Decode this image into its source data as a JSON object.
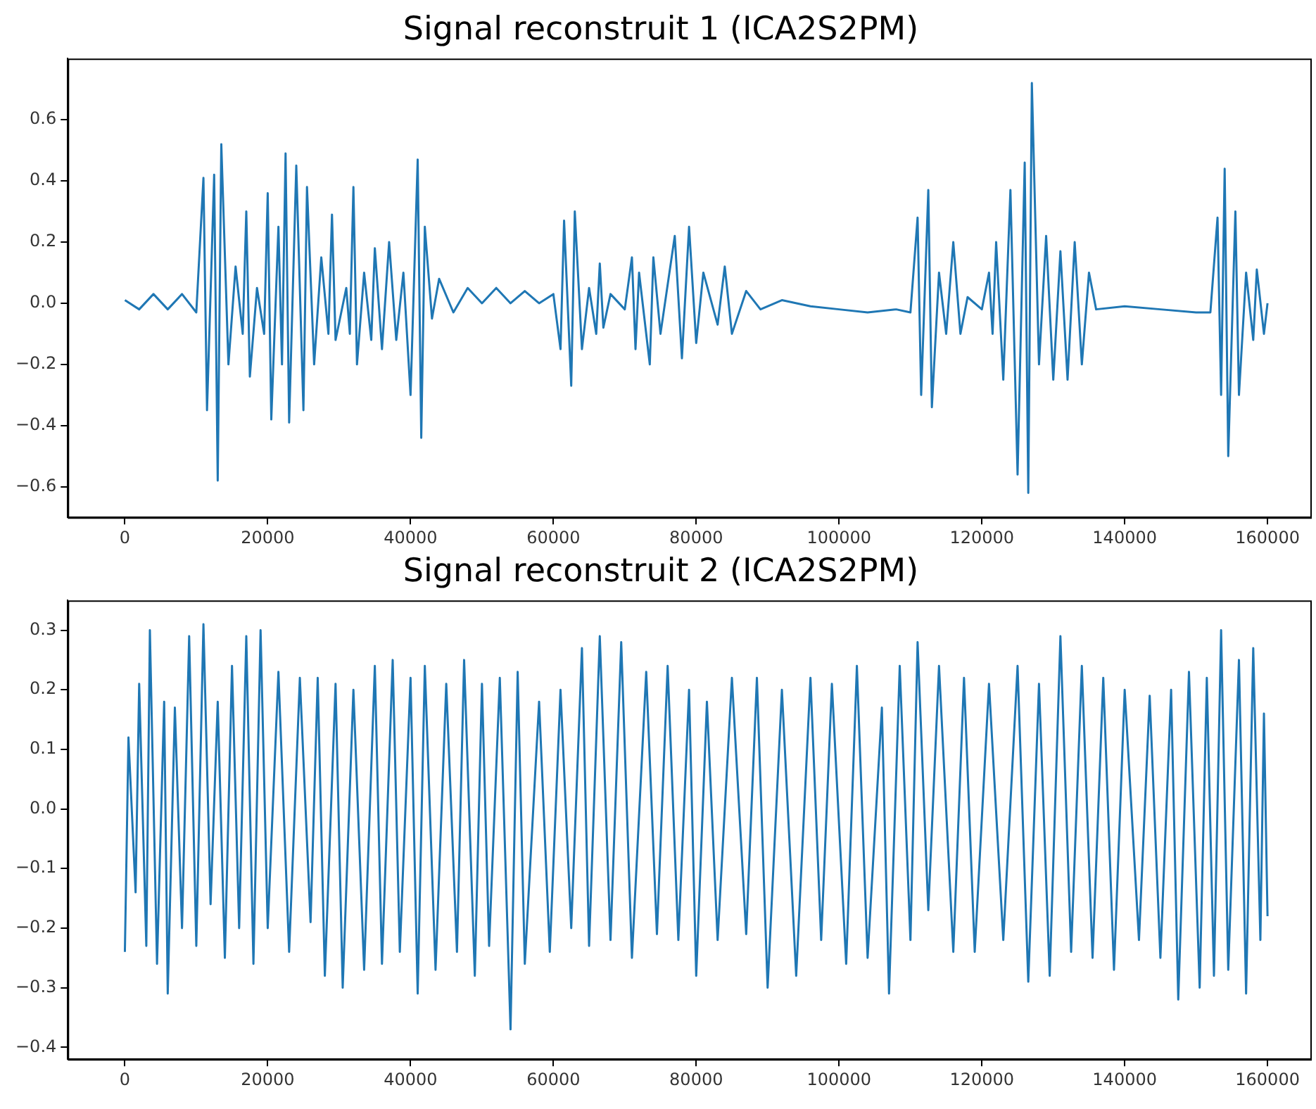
{
  "chart_data": [
    {
      "type": "line",
      "title": "Signal reconstruit 1 (ICA2S2PM)",
      "grid": false,
      "legend": false,
      "marker": "none",
      "line_style": "solid",
      "xlim": [
        -8000,
        166000
      ],
      "xticks": [
        0,
        20000,
        40000,
        60000,
        80000,
        100000,
        120000,
        140000,
        160000
      ],
      "ylim": [
        -0.7,
        0.8
      ],
      "yticks": [
        {
          "value": -0.6,
          "label": "−0.6"
        },
        {
          "value": -0.4,
          "label": "−0.4"
        },
        {
          "value": -0.2,
          "label": "−0.2"
        },
        {
          "value": 0,
          "label": "0.0"
        },
        0.2,
        0.4,
        0.6
      ],
      "series": [
        {
          "color": "#1f77b4",
          "x": [
            0,
            2000,
            4000,
            6000,
            8000,
            10000,
            11000,
            11500,
            12500,
            13000,
            13500,
            14500,
            15500,
            16500,
            17000,
            17500,
            18500,
            19500,
            20000,
            20500,
            21500,
            22000,
            22500,
            23000,
            24000,
            25000,
            25500,
            26500,
            27500,
            28500,
            29000,
            29500,
            31000,
            31500,
            32000,
            32500,
            33500,
            34500,
            35000,
            36000,
            37000,
            38000,
            39000,
            40000,
            41000,
            41500,
            42000,
            43000,
            44000,
            46000,
            48000,
            50000,
            52000,
            54000,
            56000,
            58000,
            60000,
            61000,
            61500,
            62500,
            63000,
            64000,
            65000,
            66000,
            66500,
            67000,
            68000,
            70000,
            71000,
            71500,
            72000,
            73500,
            74000,
            75000,
            77000,
            78000,
            79000,
            80000,
            81000,
            83000,
            84000,
            85000,
            87000,
            89000,
            92000,
            96000,
            100000,
            104000,
            108000,
            110000,
            111000,
            111500,
            112500,
            113000,
            114000,
            115000,
            116000,
            117000,
            118000,
            120000,
            121000,
            121500,
            122000,
            123000,
            124000,
            125000,
            126000,
            126500,
            127000,
            128000,
            129000,
            130000,
            131000,
            132000,
            133000,
            134000,
            135000,
            136000,
            140000,
            145000,
            150000,
            152000,
            153000,
            153500,
            154000,
            154500,
            155500,
            156000,
            157000,
            158000,
            158500,
            159500,
            160000
          ],
          "values": [
            0.01,
            -0.02,
            0.03,
            -0.02,
            0.03,
            -0.03,
            0.41,
            -0.35,
            0.42,
            -0.58,
            0.52,
            -0.2,
            0.12,
            -0.1,
            0.3,
            -0.24,
            0.05,
            -0.1,
            0.36,
            -0.38,
            0.25,
            -0.2,
            0.49,
            -0.39,
            0.45,
            -0.35,
            0.38,
            -0.2,
            0.15,
            -0.1,
            0.29,
            -0.12,
            0.05,
            -0.1,
            0.38,
            -0.2,
            0.1,
            -0.12,
            0.18,
            -0.15,
            0.2,
            -0.12,
            0.1,
            -0.3,
            0.47,
            -0.44,
            0.25,
            -0.05,
            0.08,
            -0.03,
            0.05,
            0,
            0.05,
            0,
            0.04,
            0,
            0.03,
            -0.15,
            0.27,
            -0.27,
            0.3,
            -0.15,
            0.05,
            -0.1,
            0.13,
            -0.08,
            0.03,
            -0.02,
            0.15,
            -0.15,
            0.1,
            -0.2,
            0.15,
            -0.1,
            0.22,
            -0.18,
            0.25,
            -0.13,
            0.1,
            -0.07,
            0.12,
            -0.1,
            0.04,
            -0.02,
            0.01,
            -0.01,
            -0.02,
            -0.03,
            -0.02,
            -0.03,
            0.28,
            -0.3,
            0.37,
            -0.34,
            0.1,
            -0.1,
            0.2,
            -0.1,
            0.02,
            -0.02,
            0.1,
            -0.1,
            0.2,
            -0.25,
            0.37,
            -0.56,
            0.46,
            -0.62,
            0.72,
            -0.2,
            0.22,
            -0.25,
            0.17,
            -0.25,
            0.2,
            -0.2,
            0.1,
            -0.02,
            -0.01,
            -0.02,
            -0.03,
            -0.03,
            0.28,
            -0.3,
            0.44,
            -0.5,
            0.3,
            -0.3,
            0.1,
            -0.12,
            0.11,
            -0.1,
            0
          ]
        }
      ]
    },
    {
      "type": "line",
      "title": "Signal reconstruit 2 (ICA2S2PM)",
      "grid": false,
      "legend": false,
      "marker": "none",
      "line_style": "solid",
      "xlim": [
        -8000,
        166000
      ],
      "xticks": [
        0,
        20000,
        40000,
        60000,
        80000,
        100000,
        120000,
        140000,
        160000
      ],
      "ylim": [
        -0.42,
        0.35
      ],
      "yticks": [
        {
          "value": -0.4,
          "label": "−0.4"
        },
        {
          "value": -0.3,
          "label": "−0.3"
        },
        {
          "value": -0.2,
          "label": "−0.2"
        },
        {
          "value": -0.1,
          "label": "−0.1"
        },
        {
          "value": 0,
          "label": "0.0"
        },
        0.1,
        0.2,
        0.3
      ],
      "series": [
        {
          "color": "#1f77b4",
          "x": [
            0,
            500,
            1500,
            2000,
            3000,
            3500,
            4500,
            5500,
            6000,
            7000,
            8000,
            9000,
            10000,
            11000,
            12000,
            13000,
            14000,
            15000,
            16000,
            17000,
            18000,
            19000,
            20000,
            21500,
            23000,
            24500,
            26000,
            27000,
            28000,
            29500,
            30500,
            32000,
            33500,
            35000,
            36000,
            37500,
            38500,
            40000,
            41000,
            42000,
            43500,
            45000,
            46500,
            47500,
            49000,
            50000,
            51000,
            52500,
            54000,
            55000,
            56000,
            58000,
            59500,
            61000,
            62500,
            64000,
            65000,
            66500,
            68000,
            69500,
            71000,
            73000,
            74500,
            76000,
            77500,
            79000,
            80000,
            81500,
            83000,
            85000,
            87000,
            88500,
            90000,
            92000,
            94000,
            96000,
            97500,
            99000,
            101000,
            102500,
            104000,
            106000,
            107000,
            108500,
            110000,
            111000,
            112500,
            114000,
            116000,
            117500,
            119000,
            121000,
            123000,
            125000,
            126500,
            128000,
            129500,
            131000,
            132500,
            134000,
            135500,
            137000,
            138500,
            140000,
            142000,
            143500,
            145000,
            146500,
            147500,
            149000,
            150500,
            151500,
            152500,
            153500,
            154500,
            156000,
            157000,
            158000,
            159000,
            159500,
            160000
          ],
          "values": [
            -0.24,
            0.12,
            -0.14,
            0.21,
            -0.23,
            0.3,
            -0.26,
            0.18,
            -0.31,
            0.17,
            -0.2,
            0.29,
            -0.23,
            0.31,
            -0.16,
            0.18,
            -0.25,
            0.24,
            -0.2,
            0.29,
            -0.26,
            0.3,
            -0.2,
            0.23,
            -0.24,
            0.22,
            -0.19,
            0.22,
            -0.28,
            0.21,
            -0.3,
            0.2,
            -0.27,
            0.24,
            -0.26,
            0.25,
            -0.24,
            0.22,
            -0.31,
            0.24,
            -0.27,
            0.21,
            -0.24,
            0.25,
            -0.28,
            0.21,
            -0.23,
            0.22,
            -0.37,
            0.23,
            -0.26,
            0.18,
            -0.24,
            0.2,
            -0.2,
            0.27,
            -0.23,
            0.29,
            -0.22,
            0.28,
            -0.25,
            0.23,
            -0.21,
            0.24,
            -0.22,
            0.2,
            -0.28,
            0.18,
            -0.22,
            0.22,
            -0.21,
            0.22,
            -0.3,
            0.2,
            -0.28,
            0.22,
            -0.22,
            0.21,
            -0.26,
            0.24,
            -0.25,
            0.17,
            -0.31,
            0.24,
            -0.22,
            0.28,
            -0.17,
            0.24,
            -0.24,
            0.22,
            -0.24,
            0.21,
            -0.22,
            0.24,
            -0.29,
            0.21,
            -0.28,
            0.29,
            -0.24,
            0.24,
            -0.25,
            0.22,
            -0.27,
            0.2,
            -0.22,
            0.19,
            -0.25,
            0.2,
            -0.32,
            0.23,
            -0.3,
            0.22,
            -0.28,
            0.3,
            -0.27,
            0.25,
            -0.31,
            0.27,
            -0.22,
            0.16,
            -0.18
          ]
        }
      ]
    }
  ]
}
